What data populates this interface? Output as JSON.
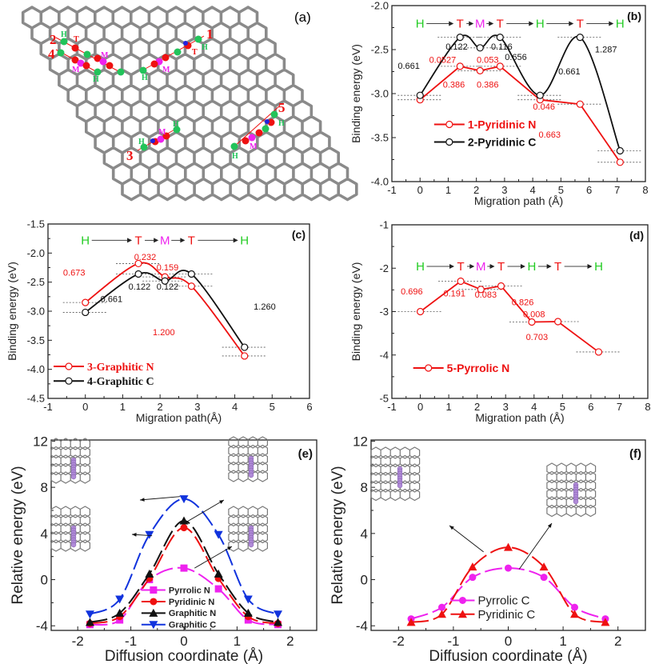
{
  "panel_a": {
    "tag": "(a)",
    "site_numbers": [
      "1",
      "2",
      "3",
      "4",
      "5"
    ],
    "site_letters": {
      "hollow": "H",
      "top": "T",
      "middle": "M"
    },
    "colors": {
      "lattice": "#8a8a8a",
      "hollow": "#22c35a",
      "top": "#ee1111",
      "middle": "#ee22ee",
      "nitrogen": "#2222dd",
      "number": "#ee1111"
    }
  },
  "chart_data": [
    {
      "id": "b",
      "tag": "(b)",
      "type": "line",
      "xlabel": "Migration path (Å)",
      "ylabel": "Binding energy (eV)",
      "xlim": [
        -1,
        8
      ],
      "ylim": [
        -4.0,
        -2.0
      ],
      "xticks": [
        "-1",
        "0",
        "1",
        "2",
        "3",
        "4",
        "5",
        "6",
        "7",
        "8"
      ],
      "yticks": [
        "-2.0",
        "-2.5",
        "-3.0",
        "-3.5",
        "-4.0"
      ],
      "path_labels": [
        "H",
        "T",
        "M",
        "T",
        "H",
        "T",
        "H"
      ],
      "series": [
        {
          "name": "1-Pyridinic N",
          "color": "#ee1111",
          "smooth": false,
          "x": [
            0,
            1.42,
            2.13,
            2.84,
            4.26,
            5.68,
            7.1
          ],
          "y": [
            -3.07,
            -2.69,
            -2.74,
            -2.69,
            -3.07,
            -3.12,
            -3.78
          ]
        },
        {
          "name": "2-Pyridinic C",
          "color": "#111111",
          "smooth": true,
          "x": [
            0,
            1.42,
            2.13,
            2.84,
            4.26,
            5.68,
            7.1
          ],
          "y": [
            -3.02,
            -2.36,
            -2.48,
            -2.36,
            -3.02,
            -2.36,
            -3.65
          ]
        }
      ],
      "annotations": [
        {
          "text": "0.661",
          "color": "#111111"
        },
        {
          "text": "0.122",
          "color": "#111111"
        },
        {
          "text": "0.116",
          "color": "#111111"
        },
        {
          "text": "0.656",
          "color": "#111111"
        },
        {
          "text": "1.287",
          "color": "#111111"
        },
        {
          "text": "0.661",
          "color": "#111111"
        },
        {
          "text": "0.0527",
          "color": "#ee1111"
        },
        {
          "text": "0.053",
          "color": "#ee1111"
        },
        {
          "text": "0.386",
          "color": "#ee1111"
        },
        {
          "text": "0.386",
          "color": "#ee1111"
        },
        {
          "text": "0.046",
          "color": "#ee1111"
        },
        {
          "text": "0.663",
          "color": "#ee1111"
        }
      ]
    },
    {
      "id": "c",
      "tag": "(c)",
      "type": "line",
      "xlabel": "Migration path(Å)",
      "ylabel": "Binding energy (eV)",
      "xlim": [
        -1,
        6
      ],
      "ylim": [
        -4.5,
        -1.5
      ],
      "xticks": [
        "-1",
        "0",
        "1",
        "2",
        "3",
        "4",
        "5",
        "6"
      ],
      "yticks": [
        "-1.5",
        "-2.0",
        "-2.5",
        "-3.0",
        "-3.5",
        "-4.0",
        "-4.5"
      ],
      "path_labels": [
        "H",
        "T",
        "M",
        "T",
        "H"
      ],
      "series": [
        {
          "name": "3-Graphitic N",
          "color": "#ee1111",
          "smooth": true,
          "x": [
            0,
            1.42,
            2.13,
            2.84,
            4.26
          ],
          "y": [
            -2.85,
            -2.18,
            -2.41,
            -2.57,
            -3.77
          ]
        },
        {
          "name": "4-Graphitic C",
          "color": "#111111",
          "smooth": true,
          "x": [
            0,
            1.42,
            2.13,
            2.84,
            4.26
          ],
          "y": [
            -3.02,
            -2.36,
            -2.48,
            -2.36,
            -3.62
          ]
        }
      ],
      "annotations": [
        {
          "text": "0.673",
          "color": "#ee1111"
        },
        {
          "text": "0.232",
          "color": "#ee1111"
        },
        {
          "text": "0.159",
          "color": "#ee1111"
        },
        {
          "text": "1.200",
          "color": "#ee1111"
        },
        {
          "text": "0.661",
          "color": "#111111"
        },
        {
          "text": "0.122",
          "color": "#111111"
        },
        {
          "text": "0.122",
          "color": "#111111"
        },
        {
          "text": "1.260",
          "color": "#111111"
        }
      ]
    },
    {
      "id": "d",
      "tag": "(d)",
      "type": "line",
      "xlabel": "Migration path (Å)",
      "ylabel": "Binding energy (eV)",
      "xlim": [
        -1,
        8
      ],
      "ylim": [
        -5,
        -1
      ],
      "xticks": [
        "-1",
        "0",
        "1",
        "2",
        "3",
        "4",
        "5",
        "6",
        "7",
        "8"
      ],
      "yticks": [
        "-1",
        "-2",
        "-3",
        "-4",
        "-5"
      ],
      "path_labels": [
        "H",
        "T",
        "M",
        "T",
        "H",
        "T",
        "H"
      ],
      "series": [
        {
          "name": "5-Pyrrolic N",
          "color": "#ee1111",
          "smooth": false,
          "x": [
            0,
            1.42,
            2.13,
            2.84,
            3.92,
            4.84,
            6.27
          ],
          "y": [
            -3.0,
            -2.3,
            -2.49,
            -2.41,
            -3.24,
            -3.23,
            -3.93
          ]
        }
      ],
      "annotations": [
        {
          "text": "0.696",
          "color": "#ee1111"
        },
        {
          "text": "0.191",
          "color": "#ee1111"
        },
        {
          "text": "0.083",
          "color": "#ee1111"
        },
        {
          "text": "0.826",
          "color": "#ee1111"
        },
        {
          "text": "0.008",
          "color": "#ee1111"
        },
        {
          "text": "0.703",
          "color": "#ee1111"
        }
      ]
    },
    {
      "id": "e",
      "tag": "(e)",
      "type": "line",
      "xlabel": "Diffusion coordinate (Å)",
      "ylabel": "Relative energy (eV)",
      "xlim": [
        -2.5,
        2.5
      ],
      "ylim": [
        -4.4,
        12.1
      ],
      "xticks": [
        "-2",
        "-1",
        "0",
        "1",
        "2"
      ],
      "yticks": [
        "-4",
        "0",
        "4",
        "8",
        "12"
      ],
      "series": [
        {
          "name": "Pyrrolic N",
          "color": "#ee22ee",
          "marker": "square",
          "x": [
            -1.77,
            -1.21,
            -0.65,
            0,
            0.65,
            1.21,
            1.77
          ],
          "y": [
            -3.9,
            -3.5,
            0.0,
            1.0,
            -0.8,
            -3.5,
            -3.9
          ]
        },
        {
          "name": "Pyridinic N",
          "color": "#ee1111",
          "marker": "circle",
          "x": [
            -1.77,
            -1.21,
            -0.65,
            0,
            0.65,
            1.21,
            1.77
          ],
          "y": [
            -3.8,
            -3.2,
            0.1,
            4.5,
            0.1,
            -3.2,
            -3.8
          ]
        },
        {
          "name": "Graphitic N",
          "color": "#111111",
          "marker": "triangle-up",
          "x": [
            -1.77,
            -1.21,
            -0.65,
            0,
            0.65,
            1.21,
            1.77
          ],
          "y": [
            -3.7,
            -2.9,
            0.5,
            5.1,
            0.5,
            -2.9,
            -3.7
          ]
        },
        {
          "name": "Graphitic C",
          "color": "#1133dd",
          "marker": "triangle-down",
          "x": [
            -1.77,
            -1.21,
            -0.65,
            0,
            0.65,
            1.21,
            1.77
          ],
          "y": [
            -3.0,
            -1.7,
            3.9,
            7.0,
            3.9,
            -1.7,
            -3.0
          ]
        }
      ],
      "legend": "bottom-center"
    },
    {
      "id": "f",
      "tag": "(f)",
      "type": "line",
      "xlabel": "Diffusion coordinate (Å)",
      "ylabel": "Relative energy (eV)",
      "xlim": [
        -2.5,
        2.5
      ],
      "ylim": [
        -4.4,
        12.1
      ],
      "xticks": [
        "-2",
        "-1",
        "0",
        "1",
        "2"
      ],
      "yticks": [
        "-4",
        "0",
        "4",
        "8",
        "12"
      ],
      "series": [
        {
          "name": "Pyrrolic C",
          "color": "#ee22ee",
          "marker": "circle",
          "x": [
            -1.77,
            -1.21,
            -0.65,
            0,
            0.65,
            1.21,
            1.77
          ],
          "y": [
            -3.4,
            -2.4,
            0.2,
            1.0,
            0.2,
            -2.4,
            -3.4
          ]
        },
        {
          "name": "Pyridinic C",
          "color": "#ee1111",
          "marker": "triangle-up",
          "x": [
            -1.77,
            -1.21,
            -0.65,
            0,
            0.65,
            1.21,
            1.77
          ],
          "y": [
            -3.7,
            -3.0,
            1.1,
            2.8,
            1.1,
            -3.0,
            -3.7
          ]
        }
      ],
      "legend": "bottom-center"
    }
  ]
}
